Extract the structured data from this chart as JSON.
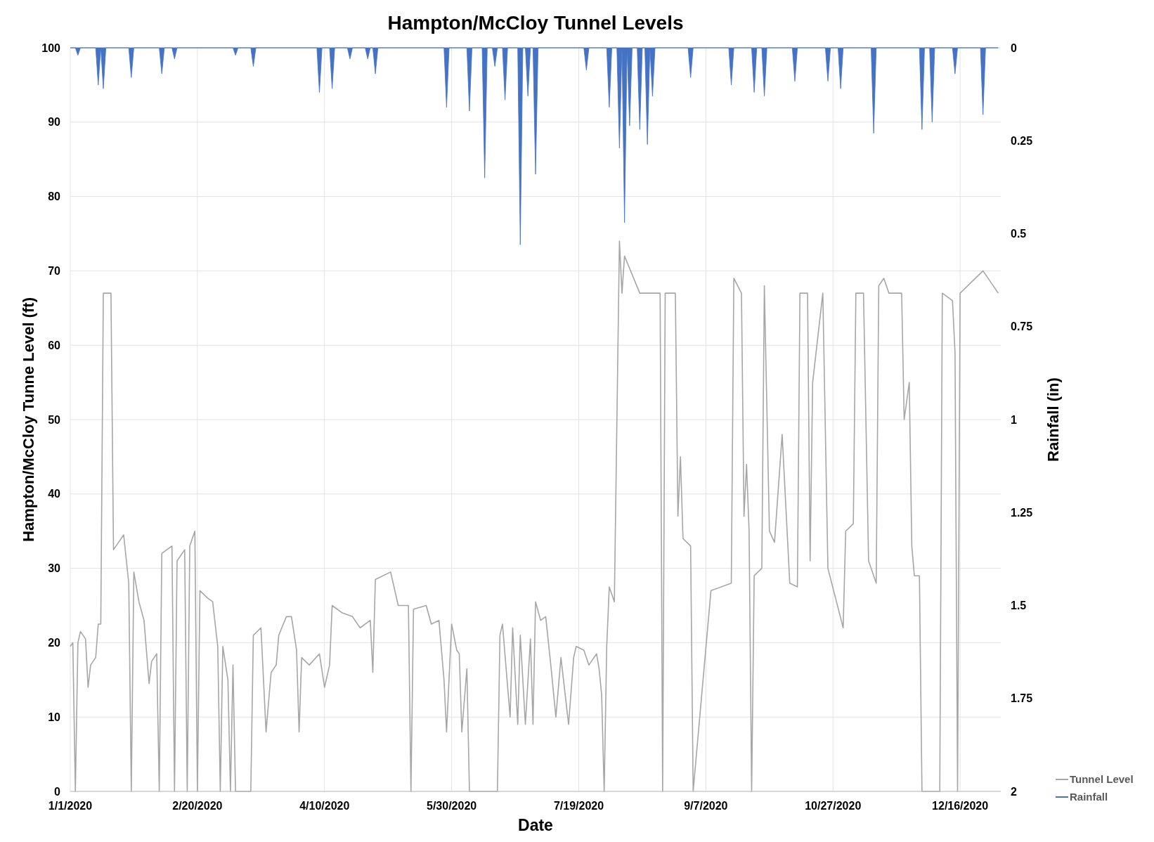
{
  "chart_data": {
    "type": "line",
    "title": "Hampton/McCloy Tunnel Levels",
    "xlabel": "Date",
    "ylabel": "Hampton/McCloy Tunne Level (ft)",
    "y2label": "Rainfall (in)",
    "xlim": [
      "2020-01-01",
      "2021-01-01"
    ],
    "xticks": [
      {
        "value": "2020-01-01",
        "label": "1/1/2020"
      },
      {
        "value": "2020-02-20",
        "label": "2/20/2020"
      },
      {
        "value": "2020-04-10",
        "label": "4/10/2020"
      },
      {
        "value": "2020-05-30",
        "label": "5/30/2020"
      },
      {
        "value": "2020-07-19",
        "label": "7/19/2020"
      },
      {
        "value": "2020-09-07",
        "label": "9/7/2020"
      },
      {
        "value": "2020-10-27",
        "label": "10/27/2020"
      },
      {
        "value": "2020-12-16",
        "label": "12/16/2020"
      }
    ],
    "ylim": [
      0,
      100
    ],
    "yticks": [
      0,
      10,
      20,
      30,
      40,
      50,
      60,
      70,
      80,
      90,
      100
    ],
    "y2lim": [
      2,
      0
    ],
    "y2ticks": [
      0,
      0.25,
      0.5,
      0.75,
      1,
      1.25,
      1.5,
      1.75,
      2
    ],
    "grid": true,
    "legend": "bottom right",
    "series": [
      {
        "name": "Tunnel Level",
        "color": "#a6a6a6",
        "x": [
          "2020-01-01",
          "2020-01-02",
          "2020-01-03",
          "2020-01-04",
          "2020-01-05",
          "2020-01-07",
          "2020-01-08",
          "2020-01-09",
          "2020-01-11",
          "2020-01-12",
          "2020-01-13",
          "2020-01-14",
          "2020-01-17",
          "2020-01-18",
          "2020-01-22",
          "2020-01-24",
          "2020-01-25",
          "2020-01-26",
          "2020-01-28",
          "2020-01-30",
          "2020-02-01",
          "2020-02-02",
          "2020-02-04",
          "2020-02-05",
          "2020-02-06",
          "2020-02-10",
          "2020-02-11",
          "2020-02-12",
          "2020-02-15",
          "2020-02-16",
          "2020-02-17",
          "2020-02-19",
          "2020-02-20",
          "2020-02-21",
          "2020-02-24",
          "2020-02-26",
          "2020-02-28",
          "2020-02-29",
          "2020-03-01",
          "2020-03-03",
          "2020-03-04",
          "2020-03-05",
          "2020-03-06",
          "2020-03-12",
          "2020-03-13",
          "2020-03-16",
          "2020-03-18",
          "2020-03-20",
          "2020-03-22",
          "2020-03-23",
          "2020-03-26",
          "2020-03-28",
          "2020-03-30",
          "2020-03-31",
          "2020-04-01",
          "2020-04-04",
          "2020-04-08",
          "2020-04-10",
          "2020-04-12",
          "2020-04-13",
          "2020-04-17",
          "2020-04-21",
          "2020-04-24",
          "2020-04-28",
          "2020-04-29",
          "2020-04-30",
          "2020-05-06",
          "2020-05-09",
          "2020-05-13",
          "2020-05-14",
          "2020-05-15",
          "2020-05-20",
          "2020-05-22",
          "2020-05-25",
          "2020-05-27",
          "2020-05-28",
          "2020-05-30",
          "2020-06-01",
          "2020-06-02",
          "2020-06-03",
          "2020-06-05",
          "2020-06-06",
          "2020-06-17",
          "2020-06-18",
          "2020-06-19",
          "2020-06-22",
          "2020-06-23",
          "2020-06-25",
          "2020-06-26",
          "2020-06-28",
          "2020-06-30",
          "2020-07-01",
          "2020-07-02",
          "2020-07-04",
          "2020-07-06",
          "2020-07-08",
          "2020-07-10",
          "2020-07-12",
          "2020-07-15",
          "2020-07-17",
          "2020-07-18",
          "2020-07-21",
          "2020-07-23",
          "2020-07-26",
          "2020-07-27",
          "2020-07-28",
          "2020-07-29",
          "2020-07-30",
          "2020-07-31",
          "2020-08-02",
          "2020-08-04",
          "2020-08-05",
          "2020-08-06",
          "2020-08-12",
          "2020-08-20",
          "2020-08-21",
          "2020-08-22",
          "2020-08-26",
          "2020-08-27",
          "2020-08-28",
          "2020-08-29",
          "2020-09-01",
          "2020-09-02",
          "2020-09-09",
          "2020-09-17",
          "2020-09-18",
          "2020-09-21",
          "2020-09-22",
          "2020-09-23",
          "2020-09-24",
          "2020-09-25",
          "2020-09-26",
          "2020-09-29",
          "2020-09-30",
          "2020-10-02",
          "2020-10-04",
          "2020-10-07",
          "2020-10-10",
          "2020-10-13",
          "2020-10-14",
          "2020-10-17",
          "2020-10-18",
          "2020-10-19",
          "2020-10-23",
          "2020-10-25",
          "2020-10-28",
          "2020-10-31",
          "2020-11-01",
          "2020-11-04",
          "2020-11-05",
          "2020-11-08",
          "2020-11-10",
          "2020-11-13",
          "2020-11-14",
          "2020-11-16",
          "2020-11-18",
          "2020-11-23",
          "2020-11-24",
          "2020-11-26",
          "2020-11-27",
          "2020-11-28",
          "2020-11-30",
          "2020-12-01",
          "2020-12-08",
          "2020-12-09",
          "2020-12-13",
          "2020-12-14",
          "2020-12-15",
          "2020-12-16",
          "2020-12-25",
          "2020-12-31"
        ],
        "values": [
          19.5,
          20,
          0,
          20,
          21.5,
          20.5,
          14,
          17,
          18,
          22.5,
          22.5,
          67,
          67,
          32.5,
          34.5,
          28,
          0,
          29.5,
          25.5,
          23,
          14.5,
          17.5,
          18.5,
          0,
          32,
          33,
          0,
          31,
          32.5,
          0,
          33,
          35,
          0,
          27,
          26,
          25.5,
          19.5,
          0,
          19.5,
          15,
          0,
          17,
          0,
          0,
          21,
          22,
          8,
          16,
          17,
          21,
          23.5,
          23.5,
          19,
          8,
          18,
          17,
          18.5,
          14,
          17,
          25,
          24,
          23.5,
          22,
          23,
          16,
          28.5,
          29.5,
          25,
          25,
          0,
          24.5,
          25,
          22.5,
          23,
          15,
          8,
          22.5,
          19,
          18.5,
          8,
          16.5,
          0,
          0,
          21,
          22.5,
          10,
          22,
          9,
          21,
          9,
          20.5,
          9,
          25.5,
          23,
          23.5,
          17,
          10,
          18,
          9,
          18,
          19.5,
          19,
          17,
          18.5,
          16.5,
          13,
          0,
          19.5,
          27.5,
          25.5,
          74,
          67,
          72,
          67,
          67,
          0,
          67,
          67,
          37,
          45,
          34,
          33,
          0,
          27,
          28,
          69,
          67,
          37,
          44,
          35,
          0,
          29,
          30,
          68,
          35,
          33.5,
          48,
          28,
          27.5,
          67,
          67,
          31,
          55,
          67,
          30,
          26,
          22,
          35,
          36,
          67,
          67,
          31,
          28,
          68,
          69,
          67,
          67,
          50,
          55,
          33,
          29,
          29,
          0,
          0,
          67,
          66,
          59,
          0,
          67,
          70,
          67
        ]
      },
      {
        "name": "Rainfall",
        "type": "area",
        "axis": "y2",
        "color": "#4472c4",
        "x": [
          "2020-01-01",
          "2020-01-03",
          "2020-01-04",
          "2020-01-05",
          "2020-01-11",
          "2020-01-12",
          "2020-01-13",
          "2020-01-14",
          "2020-01-15",
          "2020-01-24",
          "2020-01-25",
          "2020-01-26",
          "2020-02-05",
          "2020-02-06",
          "2020-02-07",
          "2020-02-10",
          "2020-02-11",
          "2020-02-12",
          "2020-03-05",
          "2020-03-06",
          "2020-03-07",
          "2020-03-12",
          "2020-03-13",
          "2020-03-14",
          "2020-04-07",
          "2020-04-08",
          "2020-04-09",
          "2020-04-12",
          "2020-04-13",
          "2020-04-14",
          "2020-04-19",
          "2020-04-20",
          "2020-04-21",
          "2020-04-26",
          "2020-04-27",
          "2020-04-28",
          "2020-04-29",
          "2020-04-30",
          "2020-05-01",
          "2020-05-27",
          "2020-05-28",
          "2020-05-29",
          "2020-06-05",
          "2020-06-06",
          "2020-06-07",
          "2020-06-11",
          "2020-06-12",
          "2020-06-13",
          "2020-06-15",
          "2020-06-16",
          "2020-06-17",
          "2020-06-19",
          "2020-06-20",
          "2020-06-21",
          "2020-06-25",
          "2020-06-26",
          "2020-06-27",
          "2020-06-28",
          "2020-06-29",
          "2020-06-30",
          "2020-07-01",
          "2020-07-02",
          "2020-07-03",
          "2020-07-21",
          "2020-07-22",
          "2020-07-23",
          "2020-07-30",
          "2020-07-31",
          "2020-08-01",
          "2020-08-03",
          "2020-08-04",
          "2020-08-05",
          "2020-08-06",
          "2020-08-07",
          "2020-08-08",
          "2020-08-09",
          "2020-08-11",
          "2020-08-12",
          "2020-08-13",
          "2020-08-14",
          "2020-08-15",
          "2020-08-16",
          "2020-08-17",
          "2020-08-18",
          "2020-08-31",
          "2020-09-01",
          "2020-09-02",
          "2020-09-16",
          "2020-09-17",
          "2020-09-18",
          "2020-09-25",
          "2020-09-26",
          "2020-09-27",
          "2020-09-29",
          "2020-09-30",
          "2020-10-01",
          "2020-10-11",
          "2020-10-12",
          "2020-10-13",
          "2020-10-24",
          "2020-10-25",
          "2020-10-26",
          "2020-10-29",
          "2020-10-30",
          "2020-10-31",
          "2020-11-11",
          "2020-11-12",
          "2020-11-13",
          "2020-11-30",
          "2020-12-01",
          "2020-12-02",
          "2020-12-04",
          "2020-12-05",
          "2020-12-06",
          "2020-12-13",
          "2020-12-14",
          "2020-12-15",
          "2020-12-24",
          "2020-12-25",
          "2020-12-26",
          "2020-12-31"
        ],
        "values": [
          0,
          0,
          0.02,
          0,
          0,
          0.1,
          0,
          0.11,
          0,
          0,
          0.08,
          0,
          0,
          0.07,
          0,
          0,
          0.03,
          0,
          0,
          0.02,
          0,
          0,
          0.05,
          0,
          0,
          0.12,
          0,
          0,
          0.11,
          0,
          0,
          0.03,
          0,
          0,
          0.03,
          0,
          0,
          0.07,
          0,
          0,
          0.16,
          0,
          0,
          0.17,
          0,
          0,
          0.35,
          0,
          0,
          0.05,
          0,
          0,
          0.14,
          0,
          0,
          0.53,
          0,
          0,
          0.13,
          0,
          0,
          0.34,
          0,
          0,
          0.06,
          0,
          0,
          0.16,
          0,
          0,
          0.27,
          0,
          0.47,
          0,
          0.21,
          0,
          0,
          0.22,
          0,
          0,
          0.26,
          0,
          0.13,
          0,
          0,
          0.08,
          0,
          0,
          0.1,
          0,
          0,
          0.12,
          0,
          0,
          0.13,
          0,
          0,
          0.09,
          0,
          0,
          0.09,
          0,
          0,
          0.11,
          0,
          0,
          0.23,
          0,
          0,
          0.22,
          0,
          0,
          0.2,
          0,
          0,
          0.07,
          0,
          0,
          0.18,
          0,
          0
        ]
      }
    ]
  }
}
